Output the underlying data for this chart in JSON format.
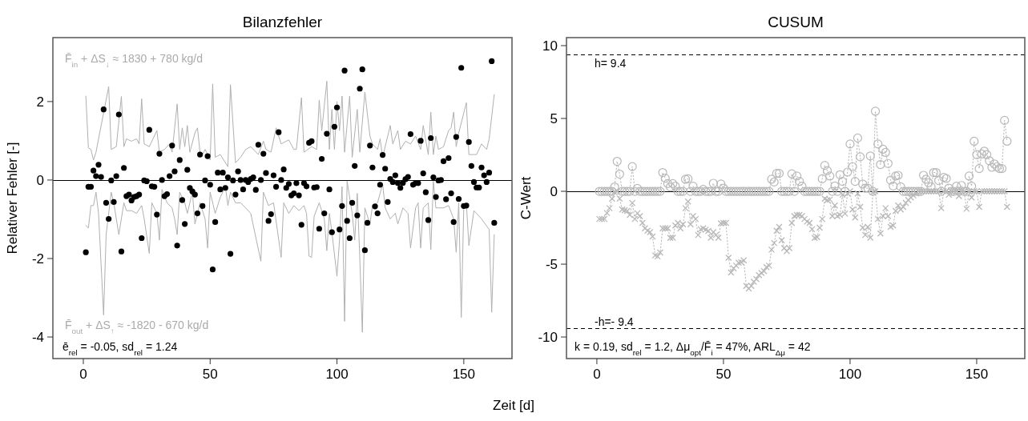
{
  "chart_data": [
    {
      "type": "scatter",
      "title": "Bilanzfehler",
      "xlabel": "Zeit [d]",
      "ylabel": "Relativer Fehler [-]",
      "xlim": [
        -12,
        169
      ],
      "ylim": [
        -4.55,
        3.63
      ],
      "xticks": [
        0,
        50,
        100,
        150
      ],
      "yticks": [
        -4,
        -2,
        0,
        2
      ],
      "annotations": [
        "F̄$_{in}$ + ΔS$_{↓}$ ≈ 1830 + 780 kg/d",
        "F̄$_{out}$ + ΔS$_{↑}$ ≈ -1820 - 670 kg/d",
        "ē$_{rel}$ = -0.05,  sd$_{rel}$ = 1.24"
      ],
      "ref_lines": [
        {
          "axis": "y",
          "value": 0,
          "color": "#000000",
          "line_style": "solid"
        }
      ],
      "x": [
        1,
        2,
        3,
        4,
        5,
        6,
        7,
        8,
        9,
        10,
        11,
        12,
        13,
        14,
        15,
        16,
        17,
        18,
        19,
        20,
        21,
        22,
        23,
        24,
        25,
        26,
        27,
        28,
        29,
        30,
        31,
        32,
        33,
        34,
        35,
        36,
        37,
        38,
        39,
        40,
        41,
        42,
        43,
        44,
        45,
        46,
        47,
        48,
        49,
        50,
        51,
        52,
        53,
        54,
        55,
        56,
        57,
        58,
        59,
        60,
        61,
        62,
        63,
        64,
        65,
        66,
        67,
        68,
        69,
        70,
        71,
        72,
        73,
        74,
        75,
        76,
        77,
        78,
        79,
        80,
        81,
        82,
        83,
        84,
        85,
        86,
        87,
        88,
        89,
        90,
        91,
        92,
        93,
        94,
        95,
        96,
        97,
        98,
        99,
        100,
        101,
        102,
        103,
        104,
        105,
        106,
        107,
        108,
        109,
        110,
        111,
        112,
        113,
        114,
        115,
        116,
        117,
        118,
        119,
        120,
        121,
        122,
        123,
        124,
        125,
        126,
        127,
        128,
        129,
        130,
        131,
        132,
        133,
        134,
        135,
        136,
        137,
        138,
        139,
        140,
        141,
        142,
        143,
        144,
        145,
        146,
        147,
        148,
        149,
        150,
        151,
        152,
        153,
        154,
        155,
        156,
        157,
        158,
        159,
        160,
        161,
        162
      ],
      "series": [
        {
          "type": "line",
          "color": "#b0b0b0",
          "x": [
            1,
            2,
            3,
            4,
            5,
            6,
            10,
            11,
            13,
            15,
            16,
            17,
            19,
            21,
            22,
            23,
            24,
            26,
            29,
            30,
            32,
            34,
            35,
            37,
            38,
            39,
            40,
            41,
            42,
            44,
            45,
            46,
            47,
            48,
            50,
            51,
            52,
            54,
            57,
            58,
            60,
            62,
            64,
            66,
            69,
            71,
            72,
            74,
            76,
            78,
            80,
            81,
            83,
            84,
            86,
            87,
            90,
            92,
            93,
            94,
            96,
            97,
            98,
            99,
            100,
            101,
            102,
            103,
            105,
            106,
            108,
            109,
            111,
            113,
            114,
            116,
            117,
            118,
            121,
            122,
            124,
            125,
            127,
            129,
            131,
            133,
            134,
            136,
            137,
            138,
            139,
            140,
            142,
            144,
            145,
            146,
            147,
            148,
            151,
            152,
            155,
            157,
            159,
            160,
            162
          ],
          "values": [
            2.14,
            0.82,
            0.78,
            0.51,
            0.71,
            1.05,
            2.38,
            0.78,
            0.85,
            2.13,
            0.85,
            1.05,
            0.99,
            1.05,
            0.92,
            2.07,
            0.92,
            0.85,
            1.26,
            0.71,
            0.78,
            0.92,
            0.71,
            1.94,
            0.78,
            1.33,
            0.85,
            1.39,
            0.71,
            1.2,
            1.33,
            0.71,
            0.65,
            0.78,
            0.51,
            2.45,
            0.58,
            0.65,
            0.34,
            2.43,
            0.44,
            0.58,
            0.78,
            0.85,
            0.65,
            0.99,
            0.78,
            0.71,
            1.33,
            0.92,
            0.99,
            1.02,
            0.78,
            0.78,
            2.1,
            0.71,
            0.85,
            0.78,
            2.04,
            1.26,
            2.52,
            0.78,
            1.8,
            0.78,
            2.0,
            1.26,
            2.14,
            0.71,
            2.14,
            0.58,
            1.8,
            0.71,
            2.24,
            1.12,
            0.92,
            0.78,
            1.05,
            0.58,
            1.39,
            0.92,
            1.26,
            0.78,
            0.99,
            0.92,
            1.12,
            0.78,
            1.39,
            0.65,
            1.73,
            0.65,
            1.12,
            0.78,
            0.85,
            1.26,
            1.33,
            1.73,
            0.85,
            1.2,
            1.97,
            0.65,
            0.65,
            0.92,
            0.78,
            1.05,
            2.18
          ]
        },
        {
          "type": "line",
          "color": "#b0b0b0",
          "x": [
            1,
            2,
            3,
            4,
            5,
            6,
            8,
            9,
            11,
            12,
            14,
            16,
            17,
            19,
            21,
            23,
            24,
            26,
            27,
            29,
            30,
            31,
            33,
            35,
            36,
            37,
            38,
            40,
            41,
            43,
            44,
            46,
            48,
            49,
            50,
            52,
            54,
            56,
            57,
            58,
            60,
            62,
            64,
            66,
            70,
            71,
            73,
            75,
            78,
            79,
            81,
            83,
            85,
            87,
            88,
            89,
            90,
            91,
            93,
            95,
            96,
            97,
            98,
            100,
            101,
            102,
            103,
            104,
            106,
            107,
            108,
            109,
            110,
            111,
            113,
            114,
            116,
            118,
            119,
            121,
            123,
            124,
            126,
            128,
            129,
            131,
            132,
            133,
            134,
            136,
            137,
            138,
            139,
            142,
            144,
            146,
            147,
            148,
            149,
            150,
            151,
            152,
            154,
            155,
            157,
            160,
            161,
            162
          ],
          "values": [
            -1.16,
            -1.22,
            -0.65,
            -0.65,
            -0.31,
            -0.85,
            -3.44,
            -1.39,
            -0.31,
            -0.58,
            -1.39,
            -0.58,
            -0.78,
            -0.78,
            -0.85,
            -0.65,
            -0.99,
            -1.87,
            -0.58,
            -0.85,
            -1.53,
            -0.24,
            -0.58,
            -0.71,
            -0.99,
            -1.39,
            -0.31,
            -0.58,
            -0.85,
            -0.31,
            -1.12,
            -0.58,
            -0.99,
            -1.73,
            -0.31,
            -0.85,
            -0.44,
            -0.17,
            -0.65,
            -0.31,
            -0.58,
            -0.58,
            -0.71,
            -0.85,
            -2.07,
            -0.31,
            -0.65,
            -0.58,
            -1.97,
            -0.58,
            -0.85,
            -0.65,
            -0.78,
            -0.65,
            -0.85,
            -1.94,
            -1.97,
            -0.92,
            -0.58,
            -0.99,
            -1.8,
            -0.85,
            -1.33,
            -2.45,
            -1.53,
            -0.17,
            -3.6,
            -0.03,
            -0.85,
            -1.53,
            -0.34,
            -2.0,
            -3.88,
            -0.71,
            -1.12,
            -0.65,
            -0.58,
            -0.1,
            -0.71,
            -0.99,
            -0.85,
            -1.12,
            -0.71,
            -0.85,
            -1.73,
            -0.71,
            -0.58,
            -1.73,
            -0.71,
            -0.58,
            -1.77,
            -0.03,
            -0.71,
            -0.71,
            -0.65,
            -0.99,
            -1.84,
            -0.58,
            -3.5,
            -0.65,
            -0.58,
            -1.67,
            -0.78,
            -0.85,
            -0.99,
            -1.26,
            -3.37,
            -1.39
          ]
        },
        {
          "color": "#000000",
          "marker": "circle",
          "values": [
            -1.84,
            -0.17,
            -0.17,
            0.24,
            0.1,
            0.39,
            0.08,
            1.8,
            -0.58,
            -0.99,
            -0.01,
            -0.56,
            0.1,
            1.67,
            -1.82,
            0.31,
            -0.41,
            -0.37,
            -0.52,
            -0.43,
            -0.41,
            -0.37,
            -1.48,
            -0.01,
            -0.03,
            1.28,
            -0.16,
            -0.17,
            -0.88,
            0.67,
            0,
            -0.41,
            -0.36,
            0.1,
            0.88,
            0.22,
            -1.67,
            0.51,
            -0.51,
            -1.12,
            0.26,
            -0.2,
            -0.29,
            -0.37,
            -0.85,
            0.65,
            -0.66,
            -0.01,
            0.61,
            -0.12,
            -2.28,
            -1.07,
            0.19,
            -0.24,
            0.19,
            -0.2,
            0.07,
            -1.88,
            -0.01,
            -0.37,
            0.22,
            0,
            -0.24,
            0,
            -0.05,
            0.03,
            0.07,
            -0.25,
            0.9,
            0,
            0.67,
            0.18,
            -1.04,
            -0.87,
            0.12,
            -0.17,
            1.22,
            0,
            0.27,
            -0.2,
            -0.1,
            -0.39,
            -0.34,
            -0.08,
            -0.39,
            -1.14,
            -0.08,
            -0.16,
            0.95,
            0.99,
            -0.19,
            -0.18,
            -1.24,
            0.54,
            -0.85,
            1.18,
            -0.24,
            -1.33,
            1.36,
            1.85,
            -1.26,
            -0.66,
            2.79,
            -1.04,
            -1.48,
            -0.58,
            0.36,
            -0.9,
            2.33,
            2.82,
            -1.79,
            -1.09,
            0.88,
            0.32,
            -0.67,
            -0.85,
            -0.12,
            0.64,
            0.29,
            -0.56,
            0.03,
            -0.05,
            0.12,
            -0.08,
            -0.2,
            -0.07,
            0.02,
            0.08,
            1.17,
            -0.12,
            -0.08,
            -0.08,
            1.0,
            0.17,
            -0.31,
            -1.02,
            1.07,
            0.07,
            -0.43,
            -0.01,
            0,
            0.48,
            -0.49,
            0.56,
            -0.34,
            -1.07,
            1.1,
            -0.48,
            2.86,
            -0.66,
            -0.65,
            0.97,
            0.36,
            -0.05,
            -0.19,
            -0.19,
            0.32,
            0.12,
            -0.05,
            0.19,
            3.03,
            -1.09
          ]
        }
      ]
    },
    {
      "type": "line",
      "title": "CUSUM",
      "ylabel": "C-Wert",
      "xlim": [
        -12,
        169
      ],
      "ylim": [
        -11.48,
        10.55
      ],
      "xticks": [
        0,
        50,
        100,
        150
      ],
      "yticks": [
        -10,
        -5,
        0,
        5,
        10
      ],
      "line_style": "dotted",
      "annotations": [
        "k = 0.19,  sd$_{rel}$ = 1.2,  Δμ$_{opt}$/F̄$_{i}$ = 47%, ARL$_{Δμ}$ = 42"
      ],
      "ref_lines": [
        {
          "axis": "y",
          "value": 9.4,
          "label": "h=  9.4",
          "line_style": "dashed",
          "color": "#000000"
        },
        {
          "axis": "y",
          "value": -9.4,
          "label": "-h=- 9.4",
          "line_style": "dashed",
          "color": "#000000"
        },
        {
          "axis": "y",
          "value": 0,
          "color": "#000000",
          "line_style": "solid"
        }
      ],
      "x": [
        1,
        2,
        3,
        4,
        5,
        6,
        7,
        8,
        9,
        10,
        11,
        12,
        13,
        14,
        15,
        16,
        17,
        18,
        19,
        20,
        21,
        22,
        23,
        24,
        25,
        26,
        27,
        28,
        29,
        30,
        31,
        32,
        33,
        34,
        35,
        36,
        37,
        38,
        39,
        40,
        41,
        42,
        43,
        44,
        45,
        46,
        47,
        48,
        49,
        50,
        51,
        52,
        53,
        54,
        55,
        56,
        57,
        58,
        59,
        60,
        61,
        62,
        63,
        64,
        65,
        66,
        67,
        68,
        69,
        70,
        71,
        72,
        73,
        74,
        75,
        76,
        77,
        78,
        79,
        80,
        81,
        82,
        83,
        84,
        85,
        86,
        87,
        88,
        89,
        90,
        91,
        92,
        93,
        94,
        95,
        96,
        97,
        98,
        99,
        100,
        101,
        102,
        103,
        104,
        105,
        106,
        107,
        108,
        109,
        110,
        111,
        112,
        113,
        114,
        115,
        116,
        117,
        118,
        119,
        120,
        121,
        122,
        123,
        124,
        125,
        126,
        127,
        128,
        129,
        130,
        131,
        132,
        133,
        134,
        135,
        136,
        137,
        138,
        139,
        140,
        141,
        142,
        143,
        144,
        145,
        146,
        147,
        148,
        149,
        150,
        151,
        152,
        153,
        154,
        155,
        156,
        157,
        158,
        159,
        160,
        161,
        162
      ],
      "series": [
        {
          "color": "#b8b8b8",
          "marker": "circle",
          "values": [
            0,
            0,
            0,
            0,
            0,
            0,
            0.3,
            2.06,
            1.18,
            0,
            0,
            0,
            0,
            1.7,
            0,
            0.2,
            0,
            0,
            0,
            0,
            0,
            0,
            0,
            0,
            0,
            1.29,
            0.9,
            0.53,
            0.3,
            0.53,
            0.35,
            0,
            0,
            0,
            0.83,
            0.86,
            0,
            0.35,
            0,
            0,
            0,
            0.13,
            0,
            0,
            0,
            0.55,
            0,
            0,
            0.5,
            0.22,
            0,
            0,
            0,
            0,
            0,
            0,
            0,
            0,
            0,
            0,
            0,
            0,
            0,
            0,
            0,
            0,
            0,
            0,
            0.83,
            0.64,
            1.23,
            1.23,
            0,
            0,
            0,
            0,
            1.2,
            0,
            1.05,
            0.68,
            0.35,
            0,
            0,
            0,
            0,
            0,
            0,
            0,
            0.86,
            1.78,
            1.42,
            1.05,
            0,
            0.37,
            0,
            1.14,
            0.68,
            0,
            1.32,
            3.25,
            1.69,
            0.68,
            3.66,
            2.37,
            0.5,
            0.22,
            0.22,
            2.43,
            0,
            5.5,
            3.25,
            1.84,
            2.89,
            2.67,
            1.91,
            0.77,
            0.37,
            1.05,
            1.1,
            0.31,
            0,
            0,
            0,
            0,
            0,
            0,
            0,
            0,
            1.1,
            0.83,
            0.59,
            0.31,
            1.29,
            1.29,
            0.74,
            0,
            0.96,
            0.88,
            0.22,
            0,
            0,
            0.35,
            0,
            0.4,
            0,
            0,
            1.05,
            0.35,
            3.44,
            2.52,
            1.56,
            2.56,
            2.76,
            2.52,
            2.1,
            1.65,
            1.88,
            1.69,
            1.56,
            1.56,
            4.87,
            3.44
          ]
        },
        {
          "color": "#b8b8b8",
          "marker": "cross",
          "values": [
            -1.9,
            -1.9,
            -1.9,
            -1.49,
            -1.16,
            -0.51,
            -0.06,
            0,
            -0.5,
            -1.25,
            -1.3,
            -1.34,
            -1.62,
            -0.8,
            -1.9,
            -1.5,
            -1.7,
            -2.17,
            -2.54,
            -2.7,
            -2.8,
            -3.1,
            -4.4,
            -4.47,
            -4.2,
            -2.54,
            -2.54,
            -2.54,
            -3.2,
            -3.18,
            -2.35,
            -2.17,
            -2.54,
            -2.26,
            -1.16,
            -0.7,
            -2.26,
            -1.7,
            -1.9,
            -3.0,
            -2.6,
            -2.54,
            -2.63,
            -2.72,
            -3.18,
            -2.8,
            -3.0,
            -3.18,
            -2.2,
            -2.17,
            -2.17,
            -4.56,
            -5.57,
            -5.29,
            -5.1,
            -4.9,
            -4.87,
            -4.74,
            -6.49,
            -6.67,
            -6.49,
            -6.21,
            -6.03,
            -5.75,
            -5.6,
            -5.48,
            -5.2,
            -5.1,
            -4.0,
            -3.55,
            -2.7,
            -2.44,
            -3.36,
            -3.9,
            -4.1,
            -3.9,
            -2.17,
            -1.7,
            -1.62,
            -1.62,
            -1.7,
            -1.9,
            -2.08,
            -2.17,
            -2.6,
            -3.2,
            -3.14,
            -2.5,
            -1.9,
            -0.51,
            -0.6,
            -0.57,
            -1.7,
            -0.97,
            -1.7,
            -1.62,
            -0.24,
            -1.53,
            -0.15,
            0,
            -1.25,
            -1.8,
            -0.15,
            -1.07,
            -2.5,
            -3.0,
            -2.44,
            -3.18,
            -0.06,
            0,
            -1.9,
            -2.9,
            -1.7,
            -1.16,
            -1.7,
            -2.44,
            -2.35,
            -1.34,
            -0.97,
            -1.25,
            -1.07,
            -0.79,
            -0.6,
            -0.42,
            -0.28,
            -0.15,
            0,
            0,
            0,
            0,
            0,
            0,
            0,
            0,
            0,
            -1.16,
            0,
            0,
            -0.24,
            0,
            0,
            0,
            -0.33,
            0,
            0,
            -1.2,
            0,
            -0.42,
            0,
            0,
            -1.07,
            0,
            0,
            0,
            0,
            0,
            0,
            0,
            0,
            0,
            0,
            -1.07
          ]
        }
      ]
    }
  ]
}
